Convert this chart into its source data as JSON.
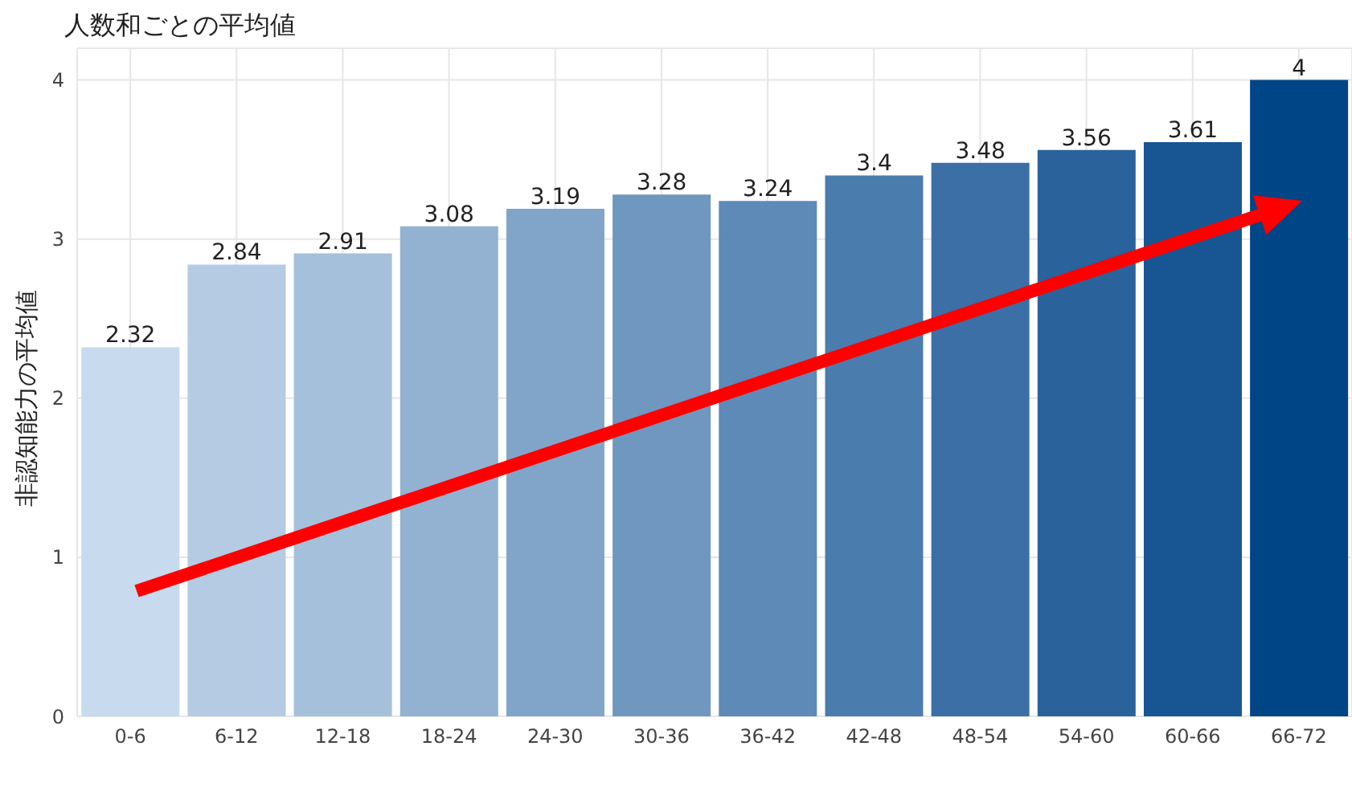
{
  "chart_data": {
    "type": "bar",
    "title": "人数和ごとの平均値",
    "ylabel": "非認知能力の平均値",
    "categories": [
      "0-6",
      "6-12",
      "12-18",
      "18-24",
      "24-30",
      "30-36",
      "36-42",
      "42-48",
      "48-54",
      "54-60",
      "60-66",
      "66-72"
    ],
    "values": [
      2.32,
      2.84,
      2.91,
      3.08,
      3.19,
      3.28,
      3.24,
      3.4,
      3.48,
      3.56,
      3.61,
      4
    ],
    "colors": [
      "#c7daee",
      "#b4cbe3",
      "#a5c0da",
      "#93b2d2",
      "#81a5c9",
      "#6f97c0",
      "#5e8ab8",
      "#4b7cae",
      "#3b6fa5",
      "#2a629c",
      "#175593",
      "#004586"
    ],
    "ylim": [
      0,
      4.2
    ],
    "yticks": [
      0,
      1,
      2,
      3,
      4
    ],
    "grid": true,
    "data_labels": true
  }
}
